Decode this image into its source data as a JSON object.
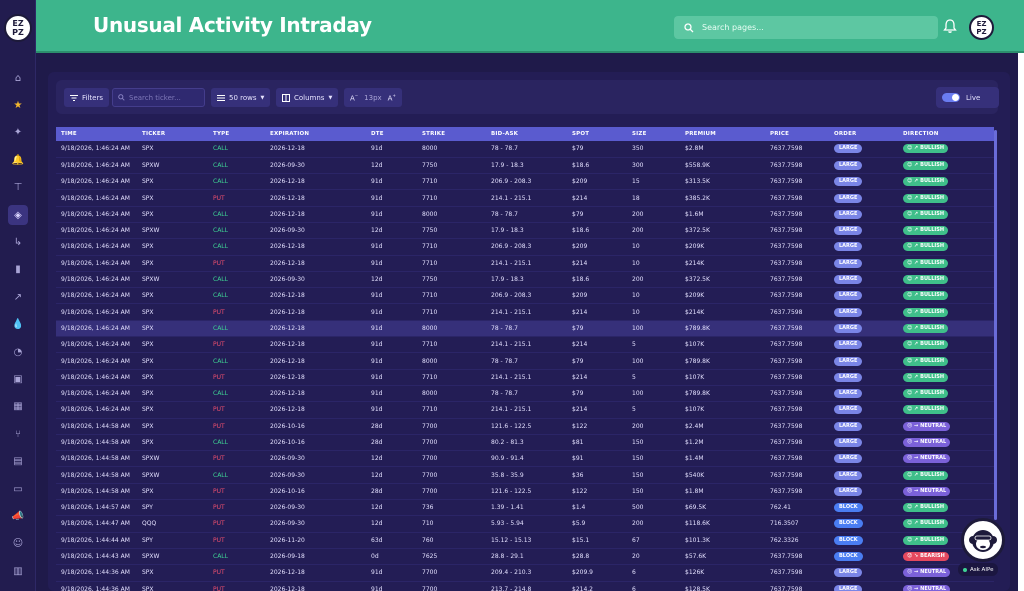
{
  "header": {
    "title": "Unusual Activity Intraday",
    "search_placeholder": "Search pages...",
    "avatar_text": "EZ PZ"
  },
  "rail": {
    "logo_text": "EZ PZ",
    "icons": [
      "home-icon",
      "star-icon",
      "sparkle-icon",
      "bell-icon",
      "org-chart-icon",
      "layers-icon",
      "arrow-turn-icon",
      "bar-chart-icon",
      "trend-chart-icon",
      "drop-icon",
      "gauge-icon",
      "briefcase-icon",
      "calendar-icon",
      "branch-icon",
      "document-icon",
      "folder-icon",
      "megaphone-icon",
      "users-icon",
      "archive-icon"
    ]
  },
  "toolbar": {
    "filters_label": "Filters",
    "search_placeholder": "Search ticker...",
    "rows_label": "50 rows",
    "columns_label": "Columns",
    "font_size_label": "13px",
    "font_decrease": "A",
    "font_increase": "A",
    "live_label": "Live"
  },
  "table": {
    "columns": [
      "TIME",
      "TICKER",
      "TYPE",
      "EXPIRATION",
      "DTE",
      "STRIKE",
      "BID-ASK",
      "SPOT",
      "SIZE",
      "PREMIUM",
      "PRICE",
      "ORDER",
      "DIRECTION"
    ],
    "rows": [
      [
        "9/18/2026, 1:46:24 AM",
        "SPX",
        "CALL",
        "2026-12-18",
        "91d",
        "8000",
        "78 - 78.7",
        "$79",
        "350",
        "$2.8M",
        "7637.7598",
        "LARGE",
        "BULLISH"
      ],
      [
        "9/18/2026, 1:46:24 AM",
        "SPXW",
        "CALL",
        "2026-09-30",
        "12d",
        "7750",
        "17.9 - 18.3",
        "$18.6",
        "300",
        "$558.9K",
        "7637.7598",
        "LARGE",
        "BULLISH"
      ],
      [
        "9/18/2026, 1:46:24 AM",
        "SPX",
        "CALL",
        "2026-12-18",
        "91d",
        "7710",
        "206.9 - 208.3",
        "$209",
        "15",
        "$313.5K",
        "7637.7598",
        "LARGE",
        "BULLISH"
      ],
      [
        "9/18/2026, 1:46:24 AM",
        "SPX",
        "PUT",
        "2026-12-18",
        "91d",
        "7710",
        "214.1 - 215.1",
        "$214",
        "18",
        "$385.2K",
        "7637.7598",
        "LARGE",
        "BULLISH"
      ],
      [
        "9/18/2026, 1:46:24 AM",
        "SPX",
        "CALL",
        "2026-12-18",
        "91d",
        "8000",
        "78 - 78.7",
        "$79",
        "200",
        "$1.6M",
        "7637.7598",
        "LARGE",
        "BULLISH"
      ],
      [
        "9/18/2026, 1:46:24 AM",
        "SPXW",
        "CALL",
        "2026-09-30",
        "12d",
        "7750",
        "17.9 - 18.3",
        "$18.6",
        "200",
        "$372.5K",
        "7637.7598",
        "LARGE",
        "BULLISH"
      ],
      [
        "9/18/2026, 1:46:24 AM",
        "SPX",
        "CALL",
        "2026-12-18",
        "91d",
        "7710",
        "206.9 - 208.3",
        "$209",
        "10",
        "$209K",
        "7637.7598",
        "LARGE",
        "BULLISH"
      ],
      [
        "9/18/2026, 1:46:24 AM",
        "SPX",
        "PUT",
        "2026-12-18",
        "91d",
        "7710",
        "214.1 - 215.1",
        "$214",
        "10",
        "$214K",
        "7637.7598",
        "LARGE",
        "BULLISH"
      ],
      [
        "9/18/2026, 1:46:24 AM",
        "SPXW",
        "CALL",
        "2026-09-30",
        "12d",
        "7750",
        "17.9 - 18.3",
        "$18.6",
        "200",
        "$372.5K",
        "7637.7598",
        "LARGE",
        "BULLISH"
      ],
      [
        "9/18/2026, 1:46:24 AM",
        "SPX",
        "CALL",
        "2026-12-18",
        "91d",
        "7710",
        "206.9 - 208.3",
        "$209",
        "10",
        "$209K",
        "7637.7598",
        "LARGE",
        "BULLISH"
      ],
      [
        "9/18/2026, 1:46:24 AM",
        "SPX",
        "PUT",
        "2026-12-18",
        "91d",
        "7710",
        "214.1 - 215.1",
        "$214",
        "10",
        "$214K",
        "7637.7598",
        "LARGE",
        "BULLISH"
      ],
      [
        "9/18/2026, 1:46:24 AM",
        "SPX",
        "CALL",
        "2026-12-18",
        "91d",
        "8000",
        "78 - 78.7",
        "$79",
        "100",
        "$789.8K",
        "7637.7598",
        "LARGE",
        "BULLISH"
      ],
      [
        "9/18/2026, 1:46:24 AM",
        "SPX",
        "PUT",
        "2026-12-18",
        "91d",
        "7710",
        "214.1 - 215.1",
        "$214",
        "5",
        "$107K",
        "7637.7598",
        "LARGE",
        "BULLISH"
      ],
      [
        "9/18/2026, 1:46:24 AM",
        "SPX",
        "CALL",
        "2026-12-18",
        "91d",
        "8000",
        "78 - 78.7",
        "$79",
        "100",
        "$789.8K",
        "7637.7598",
        "LARGE",
        "BULLISH"
      ],
      [
        "9/18/2026, 1:46:24 AM",
        "SPX",
        "PUT",
        "2026-12-18",
        "91d",
        "7710",
        "214.1 - 215.1",
        "$214",
        "5",
        "$107K",
        "7637.7598",
        "LARGE",
        "BULLISH"
      ],
      [
        "9/18/2026, 1:46:24 AM",
        "SPX",
        "CALL",
        "2026-12-18",
        "91d",
        "8000",
        "78 - 78.7",
        "$79",
        "100",
        "$789.8K",
        "7637.7598",
        "LARGE",
        "BULLISH"
      ],
      [
        "9/18/2026, 1:46:24 AM",
        "SPX",
        "PUT",
        "2026-12-18",
        "91d",
        "7710",
        "214.1 - 215.1",
        "$214",
        "5",
        "$107K",
        "7637.7598",
        "LARGE",
        "BULLISH"
      ],
      [
        "9/18/2026, 1:44:58 AM",
        "SPX",
        "PUT",
        "2026-10-16",
        "28d",
        "7700",
        "121.6 - 122.5",
        "$122",
        "200",
        "$2.4M",
        "7637.7598",
        "LARGE",
        "NEUTRAL"
      ],
      [
        "9/18/2026, 1:44:58 AM",
        "SPX",
        "CALL",
        "2026-10-16",
        "28d",
        "7700",
        "80.2 - 81.3",
        "$81",
        "150",
        "$1.2M",
        "7637.7598",
        "LARGE",
        "NEUTRAL"
      ],
      [
        "9/18/2026, 1:44:58 AM",
        "SPXW",
        "PUT",
        "2026-09-30",
        "12d",
        "7700",
        "90.9 - 91.4",
        "$91",
        "150",
        "$1.4M",
        "7637.7598",
        "LARGE",
        "NEUTRAL"
      ],
      [
        "9/18/2026, 1:44:58 AM",
        "SPXW",
        "CALL",
        "2026-09-30",
        "12d",
        "7700",
        "35.8 - 35.9",
        "$36",
        "150",
        "$540K",
        "7637.7598",
        "LARGE",
        "BULLISH"
      ],
      [
        "9/18/2026, 1:44:58 AM",
        "SPX",
        "PUT",
        "2026-10-16",
        "28d",
        "7700",
        "121.6 - 122.5",
        "$122",
        "150",
        "$1.8M",
        "7637.7598",
        "LARGE",
        "NEUTRAL"
      ],
      [
        "9/18/2026, 1:44:57 AM",
        "SPY",
        "PUT",
        "2026-09-30",
        "12d",
        "736",
        "1.39 - 1.41",
        "$1.4",
        "500",
        "$69.5K",
        "762.41",
        "BLOCK",
        "BULLISH"
      ],
      [
        "9/18/2026, 1:44:47 AM",
        "QQQ",
        "PUT",
        "2026-09-30",
        "12d",
        "710",
        "5.93 - 5.94",
        "$5.9",
        "200",
        "$118.6K",
        "716.3507",
        "BLOCK",
        "BULLISH"
      ],
      [
        "9/18/2026, 1:44:44 AM",
        "SPY",
        "PUT",
        "2026-11-20",
        "63d",
        "760",
        "15.12 - 15.13",
        "$15.1",
        "67",
        "$101.3K",
        "762.3326",
        "BLOCK",
        "BULLISH"
      ],
      [
        "9/18/2026, 1:44:43 AM",
        "SPXW",
        "CALL",
        "2026-09-18",
        "0d",
        "7625",
        "28.8 - 29.1",
        "$28.8",
        "20",
        "$57.6K",
        "7637.7598",
        "BLOCK",
        "BEARISH"
      ],
      [
        "9/18/2026, 1:44:36 AM",
        "SPX",
        "PUT",
        "2026-12-18",
        "91d",
        "7700",
        "209.4 - 210.3",
        "$209.9",
        "6",
        "$126K",
        "7637.7598",
        "LARGE",
        "NEUTRAL"
      ],
      [
        "9/18/2026, 1:44:36 AM",
        "SPX",
        "PUT",
        "2026-12-18",
        "91d",
        "7700",
        "213.7 - 214.8",
        "$214.2",
        "6",
        "$128.5K",
        "7637.7598",
        "LARGE",
        "NEUTRAL"
      ]
    ]
  },
  "direction_emoji": {
    "BULLISH": "😊 ↗",
    "NEUTRAL": "😐 →",
    "BEARISH": "😟 ↘"
  },
  "ask": {
    "label": "Ask AIPe"
  },
  "colors": {
    "header": "#3db58c",
    "background": "#1f1a4a",
    "table_header": "#5a5bcf",
    "call": "#3ed394",
    "put": "#f0506e",
    "bullish": "#3fbf8a",
    "neutral": "#7b61d9",
    "bearish": "#e5495f"
  }
}
